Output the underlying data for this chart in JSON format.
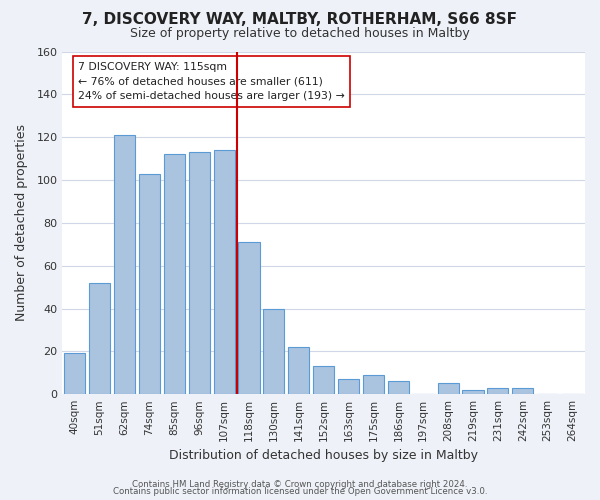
{
  "title": "7, DISCOVERY WAY, MALTBY, ROTHERHAM, S66 8SF",
  "subtitle": "Size of property relative to detached houses in Maltby",
  "xlabel": "Distribution of detached houses by size in Maltby",
  "ylabel": "Number of detached properties",
  "bar_labels": [
    "40sqm",
    "51sqm",
    "62sqm",
    "74sqm",
    "85sqm",
    "96sqm",
    "107sqm",
    "118sqm",
    "130sqm",
    "141sqm",
    "152sqm",
    "163sqm",
    "175sqm",
    "186sqm",
    "197sqm",
    "208sqm",
    "219sqm",
    "231sqm",
    "242sqm",
    "253sqm",
    "264sqm"
  ],
  "bar_heights": [
    19,
    52,
    121,
    103,
    112,
    113,
    114,
    71,
    40,
    22,
    13,
    7,
    9,
    6,
    0,
    5,
    2,
    3,
    3,
    0,
    0
  ],
  "bar_color": "#aac4e0",
  "bar_edge_color": "#5b9bd5",
  "vline_x": 6.5,
  "vline_color": "#cc0000",
  "ylim": [
    0,
    160
  ],
  "yticks": [
    0,
    20,
    40,
    60,
    80,
    100,
    120,
    140,
    160
  ],
  "annotation_title": "7 DISCOVERY WAY: 115sqm",
  "annotation_line1": "← 76% of detached houses are smaller (611)",
  "annotation_line2": "24% of semi-detached houses are larger (193) →",
  "footer1": "Contains HM Land Registry data © Crown copyright and database right 2024.",
  "footer2": "Contains public sector information licensed under the Open Government Licence v3.0.",
  "background_color": "#eef2f8",
  "plot_background_color": "#ffffff",
  "grid_color": "#d0d8e8"
}
